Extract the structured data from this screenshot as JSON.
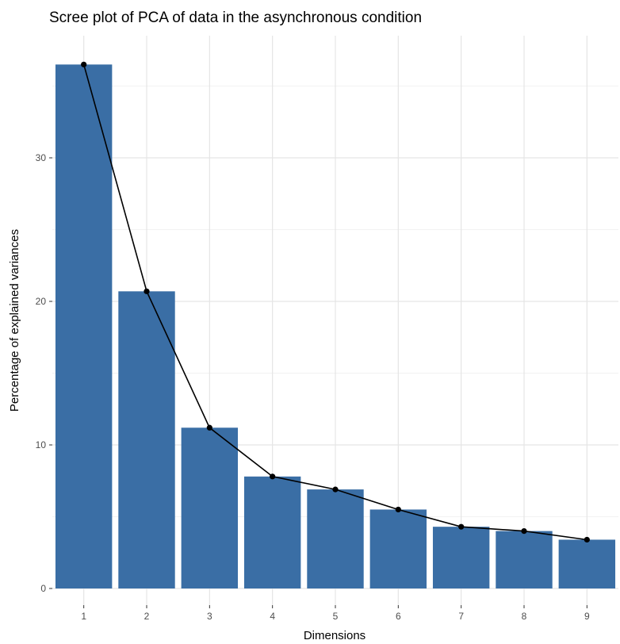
{
  "chart_data": {
    "type": "bar",
    "title": "Scree plot of PCA of data in the asynchronous condition",
    "xlabel": "Dimensions",
    "ylabel": "Percentage of explained variances",
    "categories": [
      "1",
      "2",
      "3",
      "4",
      "5",
      "6",
      "7",
      "8",
      "9"
    ],
    "values": [
      36.5,
      20.7,
      11.2,
      7.8,
      6.9,
      5.5,
      4.3,
      4.0,
      3.4
    ],
    "yticks": [
      0,
      10,
      20,
      30
    ],
    "ylim": [
      0,
      38
    ],
    "line_overlay": true,
    "grid": true,
    "bar_color": "#3A6EA5",
    "line_color": "#000000"
  }
}
